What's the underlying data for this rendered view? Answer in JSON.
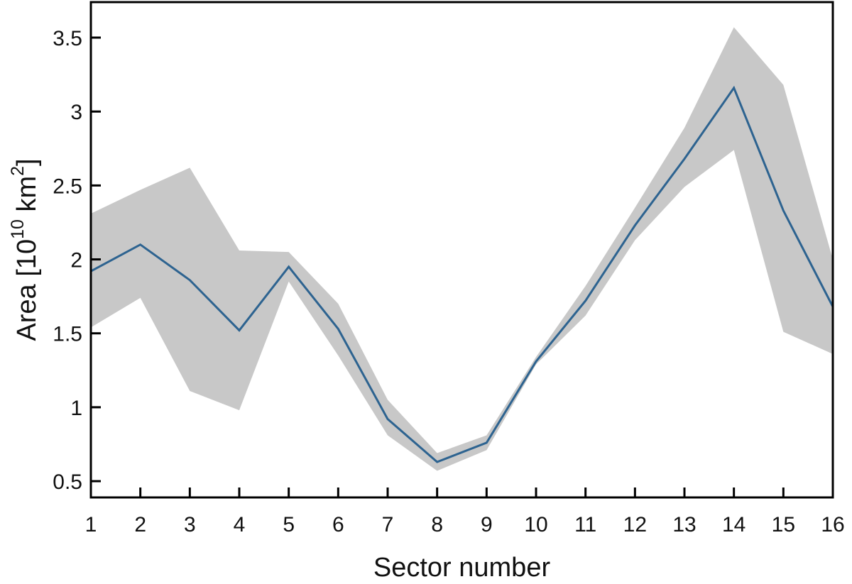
{
  "chart_data": {
    "type": "area",
    "title": "",
    "xlabel": "Sector number",
    "ylabel": {
      "prefix": "Area [10",
      "exponent": "10",
      "unit": " km",
      "unit_exponent": "2",
      "suffix": "]"
    },
    "x": [
      1,
      2,
      3,
      4,
      5,
      6,
      7,
      8,
      9,
      10,
      11,
      12,
      13,
      14,
      15,
      16
    ],
    "x_ticks": [
      "1",
      "2",
      "3",
      "4",
      "5",
      "6",
      "7",
      "8",
      "9",
      "10",
      "11",
      "12",
      "13",
      "14",
      "15",
      "16"
    ],
    "y_ticks": [
      {
        "value": 0.5,
        "label": "0.5"
      },
      {
        "value": 1,
        "label": "1"
      },
      {
        "value": 1.5,
        "label": "1.5"
      },
      {
        "value": 2,
        "label": "2"
      },
      {
        "value": 2.5,
        "label": "2.5"
      },
      {
        "value": 3,
        "label": "3"
      },
      {
        "value": 3.5,
        "label": "3.5"
      }
    ],
    "xlim": [
      1,
      16
    ],
    "ylim": [
      0.39,
      3.74
    ],
    "grid": false,
    "series": [
      {
        "values": [
          1.92,
          2.1,
          1.86,
          1.52,
          1.95,
          1.53,
          0.92,
          0.63,
          0.76,
          1.31,
          1.72,
          2.23,
          2.68,
          3.16,
          2.33,
          1.68
        ],
        "lower": [
          1.54,
          1.74,
          1.11,
          0.98,
          1.85,
          1.35,
          0.81,
          0.57,
          0.71,
          1.29,
          1.62,
          2.13,
          2.49,
          2.74,
          1.51,
          1.36
        ],
        "upper": [
          2.31,
          2.47,
          2.62,
          2.06,
          2.05,
          1.7,
          1.05,
          0.69,
          0.81,
          1.34,
          1.82,
          2.35,
          2.89,
          3.57,
          3.18,
          2.0
        ],
        "color": "#2d6390",
        "band_color": "#c8c8c8"
      }
    ]
  }
}
